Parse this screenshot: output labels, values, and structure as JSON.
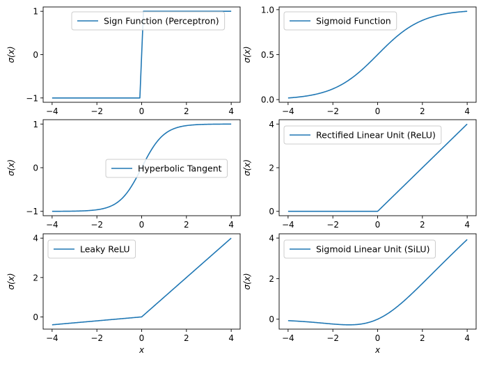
{
  "colors": {
    "series": "#1f77b4",
    "axes": "#000000",
    "legend_border": "#cccccc"
  },
  "chart_data": [
    {
      "type": "line",
      "function": "sign",
      "xlim": [
        -4.4,
        4.4
      ],
      "ylim": [
        -1.1,
        1.1
      ],
      "xticks": [
        -4,
        -2,
        0,
        2,
        4
      ],
      "yticks": [
        -1,
        0,
        1
      ],
      "ylabel": "σ(x)",
      "xlabel": "",
      "series": [
        {
          "name": "Sign Function (Perceptron)",
          "x": [
            -4,
            -0.08,
            0.08,
            4
          ],
          "y": [
            -1,
            -1,
            1,
            1
          ]
        }
      ],
      "legend": "top-right",
      "grid": false
    },
    {
      "type": "line",
      "function": "sigmoid",
      "xlim": [
        -4.4,
        4.4
      ],
      "ylim": [
        -0.03,
        1.03
      ],
      "xticks": [
        -4,
        -2,
        0,
        2,
        4
      ],
      "yticks": [
        0.0,
        0.5,
        1.0
      ],
      "ylabel": "σ(x)",
      "xlabel": "",
      "series": [
        {
          "name": "Sigmoid Function",
          "x": [
            -4,
            -3,
            -2,
            -1,
            0,
            1,
            2,
            3,
            4
          ],
          "y": [
            0.018,
            0.047,
            0.119,
            0.269,
            0.5,
            0.731,
            0.881,
            0.953,
            0.982
          ]
        }
      ],
      "legend": "top-left",
      "grid": false
    },
    {
      "type": "line",
      "function": "tanh",
      "xlim": [
        -4.4,
        4.4
      ],
      "ylim": [
        -1.1,
        1.1
      ],
      "xticks": [
        -4,
        -2,
        0,
        2,
        4
      ],
      "yticks": [
        -1,
        0,
        1
      ],
      "ylabel": "σ(x)",
      "xlabel": "",
      "series": [
        {
          "name": "Hyperbolic Tangent",
          "x": [
            -4,
            -3,
            -2,
            -1,
            0,
            1,
            2,
            3,
            4
          ],
          "y": [
            -0.999,
            -0.995,
            -0.964,
            -0.762,
            0,
            0.762,
            0.964,
            0.995,
            0.999
          ]
        }
      ],
      "legend": "center-right",
      "grid": false
    },
    {
      "type": "line",
      "function": "relu",
      "xlim": [
        -4.4,
        4.4
      ],
      "ylim": [
        -0.2,
        4.2
      ],
      "xticks": [
        -4,
        -2,
        0,
        2,
        4
      ],
      "yticks": [
        0,
        2,
        4
      ],
      "ylabel": "σ(x)",
      "xlabel": "",
      "series": [
        {
          "name": "Rectified Linear Unit (ReLU)",
          "x": [
            -4,
            0,
            4
          ],
          "y": [
            0,
            0,
            4
          ]
        }
      ],
      "legend": "top-left",
      "grid": false
    },
    {
      "type": "line",
      "function": "leaky",
      "xlim": [
        -4.4,
        4.4
      ],
      "ylim": [
        -0.62,
        4.22
      ],
      "xticks": [
        -4,
        -2,
        0,
        2,
        4
      ],
      "yticks": [
        0,
        2,
        4
      ],
      "ylabel": "σ(x)",
      "xlabel": "x",
      "series": [
        {
          "name": "Leaky ReLU",
          "x": [
            -4,
            0,
            4
          ],
          "y": [
            -0.4,
            0,
            4
          ]
        }
      ],
      "legend": "top-left",
      "grid": false
    },
    {
      "type": "line",
      "function": "silu",
      "xlim": [
        -4.4,
        4.4
      ],
      "ylim": [
        -0.49,
        4.21
      ],
      "xticks": [
        -4,
        -2,
        0,
        2,
        4
      ],
      "yticks": [
        0,
        2,
        4
      ],
      "ylabel": "σ(x)",
      "xlabel": "x",
      "series": [
        {
          "name": "Sigmoid Linear Unit (SiLU)",
          "x": [
            -4,
            -3,
            -2,
            -1.28,
            -1,
            0,
            1,
            2,
            3,
            4
          ],
          "y": [
            -0.072,
            -0.142,
            -0.238,
            -0.278,
            -0.269,
            0,
            0.731,
            1.762,
            2.858,
            3.928
          ]
        }
      ],
      "legend": "top-left",
      "grid": false
    }
  ]
}
